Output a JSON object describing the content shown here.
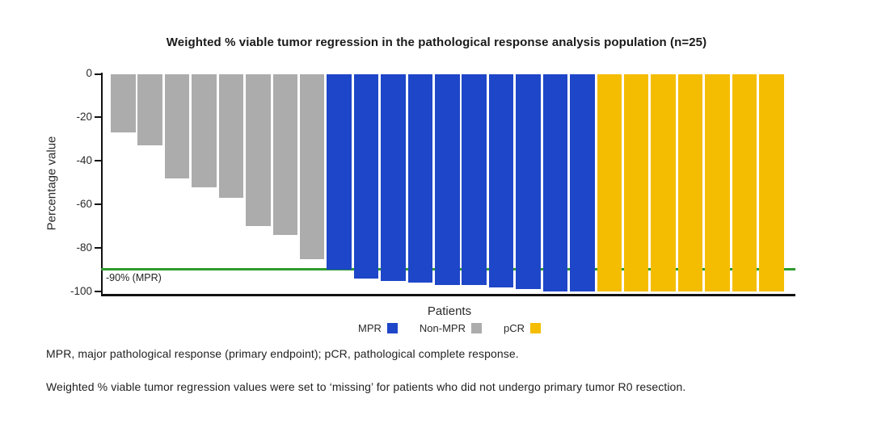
{
  "title": "Weighted % viable tumor regression in the pathological response analysis population (n=25)",
  "y_axis": {
    "label": "Percentage value",
    "ticks": [
      0,
      -20,
      -40,
      -60,
      -80,
      -100
    ]
  },
  "x_axis": {
    "label": "Patients"
  },
  "reference_line": {
    "value": -90,
    "label": "-90% (MPR)",
    "color": "#2E9B2E"
  },
  "legend": [
    {
      "label": "MPR",
      "color": "#1E46C8"
    },
    {
      "label": "Non-MPR",
      "color": "#ACACAC"
    },
    {
      "label": "pCR",
      "color": "#F5BD02"
    }
  ],
  "footnotes": [
    "MPR, major pathological response (primary endpoint); pCR, pathological complete response.",
    "Weighted % viable tumor regression values were set to ‘missing’ for patients who did not undergo primary tumor R0 resection."
  ],
  "chart_data": {
    "type": "bar",
    "title": "Weighted % viable tumor regression in the pathological response analysis population (n=25)",
    "xlabel": "Patients",
    "ylabel": "Percentage value",
    "ylim": [
      -100,
      0
    ],
    "yticks": [
      0,
      -20,
      -40,
      -60,
      -80,
      -100
    ],
    "grid": false,
    "legend_position": "bottom",
    "reference_line": {
      "value": -90,
      "label": "-90% (MPR)"
    },
    "n_patients": 25,
    "series": [
      {
        "name": "Non-MPR",
        "color": "#ACACAC",
        "values": [
          -27,
          -33,
          -48,
          -52,
          -57,
          -70,
          -74,
          -85
        ]
      },
      {
        "name": "MPR",
        "color": "#1E46C8",
        "values": [
          -90,
          -94,
          -95,
          -96,
          -97,
          -97,
          -98,
          -99,
          -100,
          -100
        ]
      },
      {
        "name": "pCR",
        "color": "#F5BD02",
        "values": [
          -100,
          -100,
          -100,
          -100,
          -100,
          -100,
          -100
        ]
      }
    ]
  }
}
